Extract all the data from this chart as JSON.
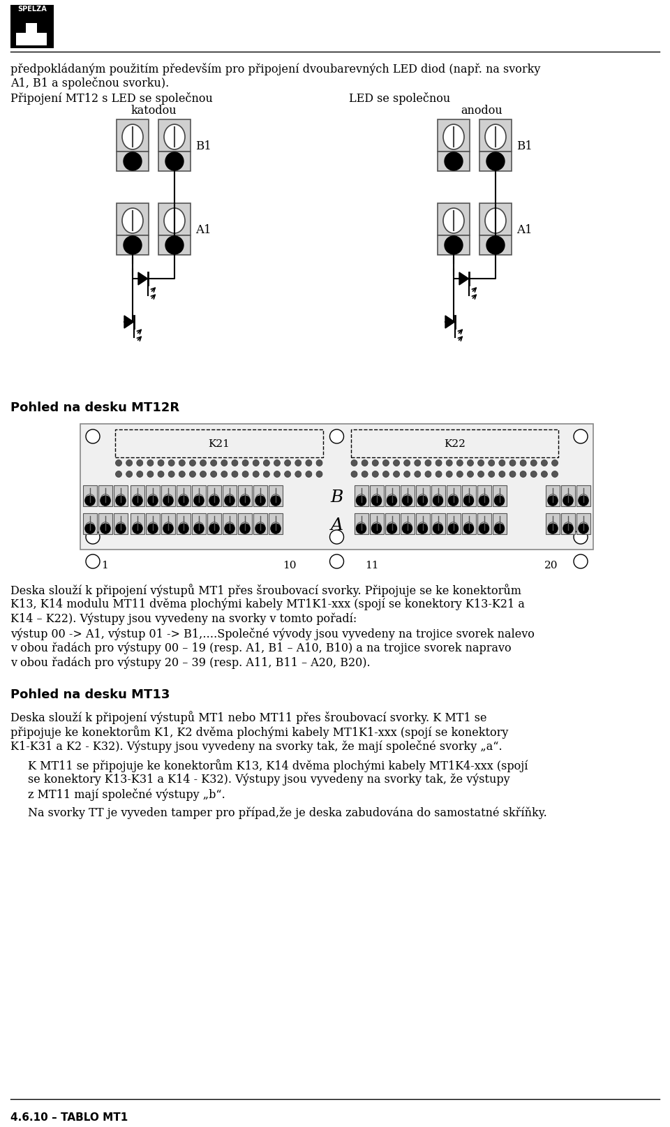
{
  "bg_color": "#ffffff",
  "text_color": "#000000",
  "footer_text": "4.6.10 – TABLO MT1",
  "para1": "předpokládaným použitím především pro připojení dvoubarevných LED diod (např. na svorky",
  "para2": "A1, B1 a společnou svorku).",
  "para3_left": "Připojení MT12 s LED se společnou",
  "para3_center_left": "katodou",
  "para3_right": "LED se společnou",
  "para3_center_right": "anodou",
  "pohled_mt12r": "Pohled na desku MT12R",
  "pohled_mt13": "Pohled na desku MT13",
  "body_text_1": "Deska slouží k připojení výstupů MT1 přes šroubovací svorky. Připojuje se ke konektorům",
  "body_text_2": "K13, K14 modulu MT11 dvěma plochými kabely MT1K1-xxx (spojí se konektory K13-K21 a",
  "body_text_3": "K14 – K22). Výstupy jsou vyvedeny na svorky v tomto pořadí:",
  "body_text_4": "výstup 00 -> A1, výstup 01 -> B1,….Společné vývody jsou vyvedeny na trojice svorek nalevo",
  "body_text_5": "v obou řadách pro výstupy 00 – 19 (resp. A1, B1 – A10, B10) a na trojice svorek napravo",
  "body_text_6": "v obou řadách pro výstupy 20 – 39 (resp. A11, B11 – A20, B20).",
  "mt13_text_1": "Deska slouží k připojení výstupů MT1 nebo MT11 přes šroubovací svorky. K MT1 se",
  "mt13_text_2": "připojuje ke konektorům K1, K2 dvěma plochými kabely MT1K1-xxx (spojí se konektory",
  "mt13_text_3": "K1-K31 a K2 - K32). Výstupy jsou vyvedeny na svorky tak, že mají společné svorky „a“.",
  "mt13_text_4": "K MT11 se připojuje ke konektorům K13, K14 dvěma plochými kabely MT1K4-xxx (spojí",
  "mt13_text_5": "se konektory K13-K31 a K14 - K32). Výstupy jsou vyvedeny na svorky tak, že výstupy",
  "mt13_text_6": "z MT11 mají společné výstupy „b“.",
  "mt13_text_7": "Na svorky TT je vyveden tamper pro případ,že je deska zabudována do samostatné skříňky."
}
